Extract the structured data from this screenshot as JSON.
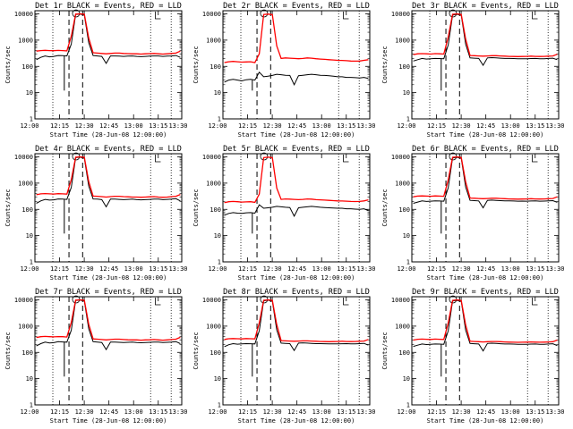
{
  "figure": {
    "background": "#ffffff",
    "event_color": "#000000",
    "lld_color": "#ff0000"
  },
  "x_ticks": [
    "12:00",
    "12:15",
    "12:30",
    "12:45",
    "13:00",
    "13:15",
    "13:30"
  ],
  "y_ticks": [
    "1",
    "10",
    "100",
    "1000",
    "10000"
  ],
  "xlabel": "Start Time (28-Jun-08 12:00:00)",
  "ylabel": "Counts/sec",
  "chart_data": [
    {
      "type": "line",
      "title": "Det 1r BLACK = Events, RED = LLD",
      "series": [
        {
          "values": [
            180,
            220,
            250,
            230,
            240,
            260,
            255,
            250,
            700,
            9500,
            9800,
            9000,
            800,
            260,
            250,
            240,
            130,
            250,
            250,
            245,
            240,
            245,
            250,
            240,
            235,
            240,
            245,
            250,
            250,
            240,
            245,
            250,
            260,
            220
          ]
        },
        {
          "values": [
            380,
            400,
            410,
            400,
            395,
            405,
            400,
            390,
            1400,
            9800,
            10000,
            9700,
            1200,
            330,
            320,
            310,
            300,
            310,
            320,
            320,
            310,
            305,
            300,
            300,
            295,
            300,
            305,
            310,
            300,
            295,
            300,
            310,
            320,
            380
          ]
        }
      ]
    },
    {
      "type": "line",
      "title": "Det 2r BLACK = Events, RED = LLD",
      "series": [
        {
          "values": [
            25,
            30,
            32,
            30,
            28,
            31,
            32,
            30,
            60,
            40,
            42,
            45,
            50,
            48,
            46,
            45,
            20,
            44,
            46,
            48,
            50,
            48,
            46,
            45,
            44,
            42,
            40,
            40,
            38,
            38,
            37,
            36,
            38,
            35
          ]
        },
        {
          "values": [
            140,
            150,
            155,
            150,
            145,
            148,
            150,
            140,
            300,
            9500,
            9800,
            9400,
            600,
            200,
            210,
            205,
            200,
            195,
            200,
            210,
            205,
            195,
            190,
            185,
            180,
            175,
            170,
            168,
            165,
            160,
            158,
            160,
            170,
            180
          ]
        }
      ]
    },
    {
      "type": "line",
      "title": "Det 3r BLACK = Events, RED = LLD",
      "series": [
        {
          "values": [
            160,
            180,
            200,
            190,
            195,
            200,
            198,
            195,
            650,
            9000,
            9600,
            8800,
            700,
            210,
            205,
            200,
            110,
            210,
            215,
            210,
            205,
            200,
            200,
            198,
            195,
            196,
            195,
            198,
            200,
            195,
            196,
            200,
            205,
            180
          ]
        },
        {
          "values": [
            280,
            300,
            305,
            300,
            295,
            305,
            300,
            295,
            1300,
            9600,
            10000,
            9500,
            1100,
            260,
            255,
            250,
            245,
            250,
            255,
            255,
            250,
            245,
            240,
            238,
            236,
            238,
            240,
            245,
            240,
            238,
            240,
            245,
            250,
            290
          ]
        }
      ]
    },
    {
      "type": "line",
      "title": "Det 4r BLACK = Events, RED = LLD",
      "series": [
        {
          "values": [
            170,
            210,
            240,
            225,
            230,
            250,
            245,
            240,
            680,
            9300,
            9700,
            8900,
            780,
            250,
            245,
            235,
            125,
            245,
            245,
            240,
            235,
            240,
            245,
            235,
            230,
            235,
            240,
            245,
            245,
            235,
            240,
            245,
            255,
            210
          ]
        },
        {
          "values": [
            360,
            390,
            400,
            390,
            385,
            395,
            390,
            380,
            1350,
            9700,
            10000,
            9600,
            1150,
            320,
            315,
            305,
            295,
            305,
            315,
            315,
            305,
            300,
            295,
            295,
            290,
            295,
            300,
            305,
            295,
            290,
            295,
            305,
            315,
            370
          ]
        }
      ]
    },
    {
      "type": "line",
      "title": "Det 5r BLACK = Events, RED = LLD",
      "series": [
        {
          "values": [
            60,
            70,
            75,
            72,
            70,
            74,
            75,
            72,
            150,
            110,
            115,
            120,
            130,
            125,
            120,
            118,
            55,
            115,
            120,
            125,
            130,
            125,
            120,
            118,
            115,
            112,
            110,
            110,
            105,
            105,
            102,
            100,
            105,
            90
          ]
        },
        {
          "values": [
            180,
            195,
            200,
            195,
            190,
            193,
            195,
            185,
            380,
            9400,
            9700,
            9300,
            650,
            240,
            250,
            245,
            240,
            235,
            240,
            250,
            245,
            235,
            230,
            225,
            220,
            215,
            210,
            208,
            205,
            200,
            198,
            200,
            210,
            230
          ]
        }
      ]
    },
    {
      "type": "line",
      "title": "Det 6r BLACK = Events, RED = LLD",
      "series": [
        {
          "values": [
            170,
            190,
            210,
            200,
            205,
            210,
            208,
            205,
            660,
            9100,
            9600,
            8800,
            710,
            220,
            215,
            210,
            115,
            220,
            225,
            220,
            215,
            210,
            210,
            208,
            205,
            206,
            205,
            208,
            210,
            205,
            206,
            210,
            215,
            185
          ]
        },
        {
          "values": [
            300,
            320,
            325,
            320,
            315,
            325,
            320,
            315,
            1320,
            9600,
            10000,
            9500,
            1120,
            270,
            265,
            260,
            255,
            260,
            265,
            265,
            260,
            255,
            250,
            248,
            246,
            248,
            250,
            255,
            250,
            248,
            250,
            255,
            260,
            300
          ]
        }
      ]
    },
    {
      "type": "line",
      "title": "Det 7r BLACK = Events, RED = LLD",
      "series": [
        {
          "values": [
            175,
            215,
            245,
            228,
            235,
            255,
            250,
            245,
            690,
            9400,
            9800,
            9000,
            790,
            255,
            248,
            238,
            128,
            248,
            248,
            242,
            238,
            242,
            248,
            238,
            232,
            238,
            242,
            248,
            248,
            238,
            242,
            248,
            258,
            215
          ]
        },
        {
          "values": [
            370,
            395,
            405,
            395,
            390,
            400,
            395,
            385,
            1380,
            9750,
            10000,
            9650,
            1180,
            325,
            318,
            308,
            298,
            308,
            318,
            318,
            308,
            302,
            298,
            298,
            292,
            298,
            302,
            308,
            298,
            292,
            298,
            308,
            318,
            375
          ]
        }
      ]
    },
    {
      "type": "line",
      "title": "Det 8r BLACK = Events, RED = LLD",
      "series": [
        {
          "values": [
            165,
            195,
            215,
            205,
            210,
            215,
            213,
            210,
            670,
            9200,
            9700,
            8900,
            720,
            225,
            220,
            215,
            118,
            225,
            230,
            225,
            220,
            215,
            215,
            213,
            210,
            211,
            210,
            213,
            215,
            210,
            211,
            215,
            220,
            190
          ]
        },
        {
          "values": [
            310,
            330,
            335,
            330,
            325,
            335,
            330,
            325,
            1340,
            9650,
            10000,
            9550,
            1140,
            280,
            275,
            270,
            265,
            270,
            275,
            275,
            270,
            265,
            260,
            258,
            256,
            258,
            260,
            265,
            260,
            258,
            260,
            265,
            270,
            310
          ]
        }
      ]
    },
    {
      "type": "line",
      "title": "Det 9r BLACK = Events, RED = LLD",
      "series": [
        {
          "values": [
            168,
            188,
            208,
            198,
            203,
            208,
            206,
            203,
            655,
            9050,
            9550,
            8750,
            705,
            218,
            213,
            208,
            113,
            218,
            223,
            218,
            213,
            208,
            208,
            206,
            203,
            204,
            203,
            206,
            208,
            203,
            204,
            208,
            213,
            183
          ]
        },
        {
          "values": [
            295,
            315,
            320,
            315,
            310,
            320,
            315,
            310,
            1310,
            9550,
            10000,
            9450,
            1110,
            265,
            260,
            255,
            250,
            255,
            260,
            260,
            255,
            250,
            245,
            243,
            241,
            243,
            245,
            250,
            245,
            243,
            245,
            250,
            255,
            295
          ]
        }
      ]
    }
  ]
}
